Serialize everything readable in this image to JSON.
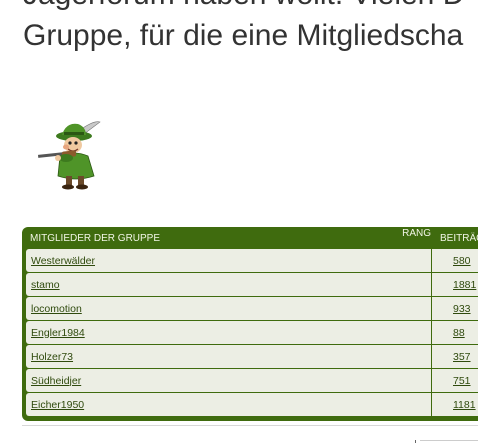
{
  "intro": {
    "line1": "Jägerforum haben wollt. Vielen D",
    "line2": "Gruppe, für die eine Mitgliedscha"
  },
  "members_table": {
    "header_group": "Mitglieder der Gruppe",
    "header_rank": "Rang",
    "header_posts": "Beiträge",
    "rows": [
      {
        "name": "Westerwälder",
        "posts": "580"
      },
      {
        "name": "stamo",
        "posts": "1881"
      },
      {
        "name": "locomotion",
        "posts": "933"
      },
      {
        "name": "Engler1984",
        "posts": "88"
      },
      {
        "name": "Holzer73",
        "posts": "357"
      },
      {
        "name": "Südheidjer",
        "posts": "751"
      },
      {
        "name": "Eicher1950",
        "posts": "1181"
      }
    ]
  },
  "colors": {
    "header_green": "#3f6b0e",
    "row_bg": "#eceee4",
    "link": "#2f4a0d"
  },
  "icons": {
    "group_avatar": "hunter-with-rifle-icon"
  }
}
